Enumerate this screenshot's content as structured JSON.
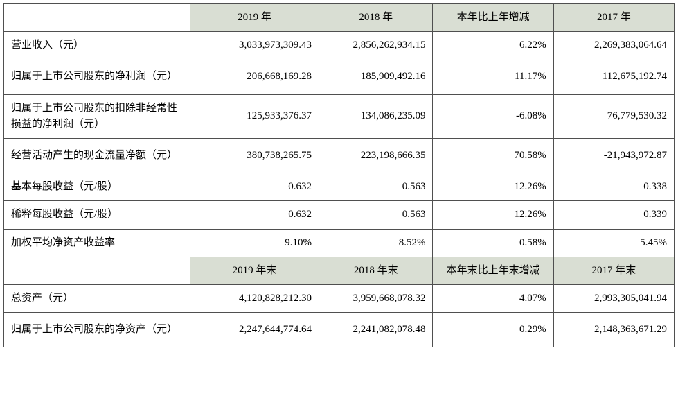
{
  "colors": {
    "header_bg": "#d9ded3",
    "border": "#4f4f4f",
    "text": "#000000"
  },
  "table": {
    "name": "key-financial-indicators",
    "rows": [
      {
        "type": "header",
        "cells": [
          "",
          "2019 年",
          "2018 年",
          "本年比上年增减",
          "2017 年"
        ]
      },
      {
        "type": "data",
        "cells": [
          "营业收入（元）",
          "3,033,973,309.43",
          "2,856,262,934.15",
          "6.22%",
          "2,269,383,064.64"
        ]
      },
      {
        "type": "data",
        "cells": [
          "归属于上市公司股东的净利润（元）",
          "206,668,169.28",
          "185,909,492.16",
          "11.17%",
          "112,675,192.74"
        ]
      },
      {
        "type": "data",
        "cells": [
          "归属于上市公司股东的扣除非经常性损益的净利润（元）",
          "125,933,376.37",
          "134,086,235.09",
          "-6.08%",
          "76,779,530.32"
        ]
      },
      {
        "type": "data",
        "cells": [
          "经营活动产生的现金流量净额（元）",
          "380,738,265.75",
          "223,198,666.35",
          "70.58%",
          "-21,943,972.87"
        ]
      },
      {
        "type": "data",
        "cells": [
          "基本每股收益（元/股）",
          "0.632",
          "0.563",
          "12.26%",
          "0.338"
        ]
      },
      {
        "type": "data",
        "cells": [
          "稀释每股收益（元/股）",
          "0.632",
          "0.563",
          "12.26%",
          "0.339"
        ]
      },
      {
        "type": "data",
        "cells": [
          "加权平均净资产收益率",
          "9.10%",
          "8.52%",
          "0.58%",
          "5.45%"
        ]
      },
      {
        "type": "header",
        "cells": [
          "",
          "2019 年末",
          "2018 年末",
          "本年末比上年末增减",
          "2017 年末"
        ]
      },
      {
        "type": "data",
        "cells": [
          "总资产（元）",
          "4,120,828,212.30",
          "3,959,668,078.32",
          "4.07%",
          "2,993,305,041.94"
        ]
      },
      {
        "type": "data",
        "cells": [
          "归属于上市公司股东的净资产（元）",
          "2,247,644,774.64",
          "2,241,082,078.48",
          "0.29%",
          "2,148,363,671.29"
        ]
      }
    ]
  }
}
